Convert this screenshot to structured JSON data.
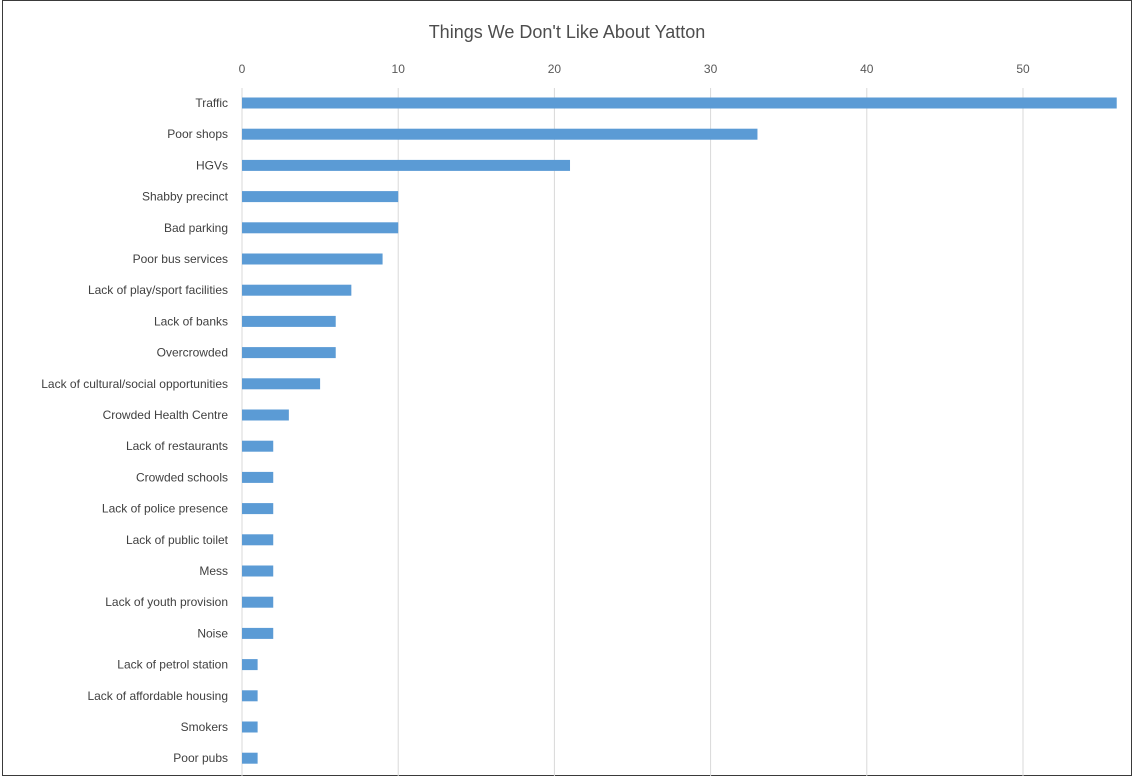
{
  "chart_data": {
    "type": "bar",
    "orientation": "horizontal",
    "title": "Things We Don't Like About Yatton",
    "xlabel": "",
    "ylabel": "",
    "xlim": [
      0,
      56
    ],
    "ticks": [
      0,
      10,
      20,
      30,
      40,
      50
    ],
    "tick_position": "top",
    "grid": true,
    "legend": "none",
    "bar_color": "#5b9bd5",
    "categories": [
      "Traffic",
      "Poor shops",
      "HGVs",
      "Shabby precinct",
      "Bad parking",
      "Poor bus services",
      "Lack of play/sport facilities",
      "Lack of banks",
      "Overcrowded",
      "Lack of cultural/social opportunities",
      "Crowded Health Centre",
      "Lack of restaurants",
      "Crowded schools",
      "Lack of police presence",
      "Lack of public toilet",
      "Mess",
      "Lack of youth provision",
      "Noise",
      "Lack of petrol station",
      "Lack of affordable housing",
      "Smokers",
      "Poor pubs"
    ],
    "values": [
      56,
      33,
      21,
      10,
      10,
      9,
      7,
      6,
      6,
      5,
      3,
      2,
      2,
      2,
      2,
      2,
      2,
      2,
      1,
      1,
      1,
      1
    ]
  }
}
